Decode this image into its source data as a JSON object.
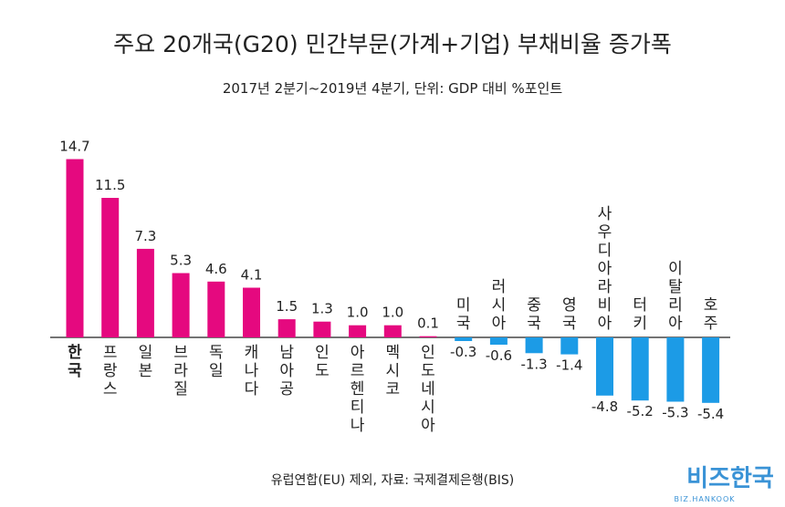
{
  "chart_data": {
    "type": "bar",
    "title": "주요 20개국(G20) 민간부문(가계+기업) 부채비율 증가폭",
    "subtitle": "2017년 2분기~2019년 4분기, 단위: GDP 대비 %포인트",
    "categories": [
      "한국",
      "프랑스",
      "일본",
      "브라질",
      "독일",
      "캐나다",
      "남아공",
      "인도",
      "아르헨티나",
      "멕시코",
      "인도네시아",
      "미국",
      "러시아",
      "중국",
      "영국",
      "사우디아라비아",
      "터키",
      "이탈리아",
      "호주"
    ],
    "values": [
      14.7,
      11.5,
      7.3,
      5.3,
      4.6,
      4.1,
      1.5,
      1.3,
      1.0,
      1.0,
      0.1,
      -0.3,
      -0.6,
      -1.3,
      -1.4,
      -4.8,
      -5.2,
      -5.3,
      -5.4
    ],
    "value_labels": [
      "14.7",
      "11.5",
      "7.3",
      "5.3",
      "4.6",
      "4.1",
      "1.5",
      "1.3",
      "1.0",
      "1.0",
      "0.1",
      "-0.3",
      "-0.6",
      "-1.3",
      "-1.4",
      "-4.8",
      "-5.2",
      "-5.3",
      "-5.4"
    ],
    "highlight_category": "한국",
    "colors": {
      "positive": "#E5097F",
      "negative": "#1C9BE6",
      "axis": "#222222"
    },
    "grid": false,
    "legend": "none",
    "ylim": [
      -6,
      16
    ]
  },
  "footer": {
    "note": "유럽연합(EU) 제외, 자료: 국제결제은행(BIS)",
    "brand": "비즈한국",
    "brand_sub": "BIZ.HANKOOK",
    "brand_color": "#3A93D6"
  }
}
